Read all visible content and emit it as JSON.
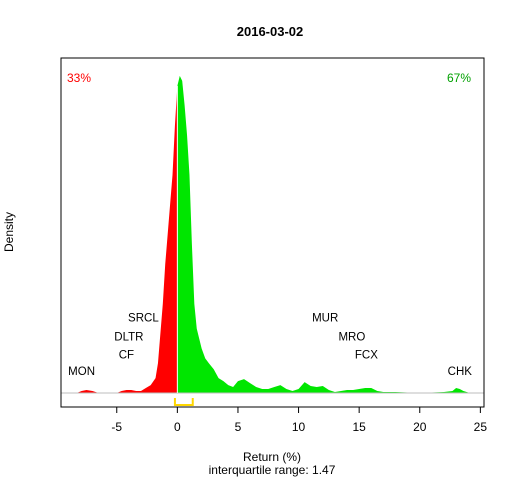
{
  "chart_data": {
    "type": "area",
    "title": "2016-03-02",
    "xlabel": "Return (%)",
    "subtitle": "interquartile range: 1.47",
    "ylabel": "Density",
    "xlim": [
      -9.6,
      25.3
    ],
    "ylim": [
      0,
      0.33
    ],
    "x_ticks": [
      -5,
      0,
      5,
      10,
      15,
      20,
      25
    ],
    "x_tick_labels": [
      "-5",
      "0",
      "5",
      "10",
      "15",
      "20",
      "25"
    ],
    "negative_share": "33%",
    "positive_share": "67%",
    "colors": {
      "negative": "#ff0000",
      "positive": "#00e600",
      "iqr": "#ffd700",
      "baseline": "#bebebe"
    },
    "iqr": [
      -0.2,
      1.27
    ],
    "density": {
      "x": [
        -8.3,
        -7.9,
        -7.5,
        -7.0,
        -6.5,
        -5.0,
        -4.6,
        -4.2,
        -3.8,
        -3.4,
        -3.0,
        -2.6,
        -2.2,
        -1.8,
        -1.6,
        -1.4,
        -1.2,
        -1.0,
        -0.8,
        -0.6,
        -0.4,
        -0.2,
        0.0,
        0.2,
        0.4,
        0.6,
        0.8,
        1.0,
        1.2,
        1.4,
        1.6,
        1.8,
        2.0,
        2.3,
        2.6,
        3.0,
        3.4,
        3.8,
        4.2,
        4.6,
        5.0,
        5.5,
        6.0,
        6.5,
        7.0,
        7.5,
        8.0,
        8.5,
        9.0,
        9.5,
        10.0,
        10.5,
        11.0,
        11.5,
        12.0,
        12.5,
        13.0,
        13.5,
        14.0,
        14.5,
        15.0,
        15.5,
        16.0,
        16.5,
        17.0,
        18.0,
        19.0,
        20.0,
        21.0,
        22.0,
        22.7,
        23.0,
        23.3,
        23.6,
        24.0,
        25.0
      ],
      "y": [
        0,
        0.002,
        0.003,
        0.002,
        0,
        0,
        0.002,
        0.003,
        0.003,
        0.002,
        0.002,
        0.005,
        0.008,
        0.015,
        0.03,
        0.06,
        0.09,
        0.13,
        0.16,
        0.19,
        0.22,
        0.27,
        0.31,
        0.32,
        0.315,
        0.29,
        0.26,
        0.22,
        0.15,
        0.09,
        0.065,
        0.055,
        0.045,
        0.035,
        0.03,
        0.024,
        0.015,
        0.012,
        0.008,
        0.006,
        0.012,
        0.014,
        0.01,
        0.006,
        0.004,
        0.004,
        0.006,
        0.008,
        0.004,
        0.002,
        0.004,
        0.011,
        0.007,
        0.006,
        0.007,
        0.003,
        0.001,
        0.002,
        0.003,
        0.003,
        0.004,
        0.005,
        0.005,
        0.002,
        0.001,
        0.001,
        0.0005,
        0.0005,
        0.0005,
        0.001,
        0.002,
        0.005,
        0.004,
        0.002,
        0.0005,
        0
      ]
    },
    "annotations": [
      {
        "label": "MON",
        "x": -7.9,
        "y": 0.018
      },
      {
        "label": "CF",
        "x": -4.2,
        "y": 0.035
      },
      {
        "label": "DLTR",
        "x": -4.0,
        "y": 0.053
      },
      {
        "label": "SRCL",
        "x": -2.8,
        "y": 0.072
      },
      {
        "label": "MUR",
        "x": 12.2,
        "y": 0.072
      },
      {
        "label": "MRO",
        "x": 14.4,
        "y": 0.053
      },
      {
        "label": "FCX",
        "x": 15.6,
        "y": 0.035
      },
      {
        "label": "CHK",
        "x": 23.3,
        "y": 0.018
      }
    ]
  }
}
